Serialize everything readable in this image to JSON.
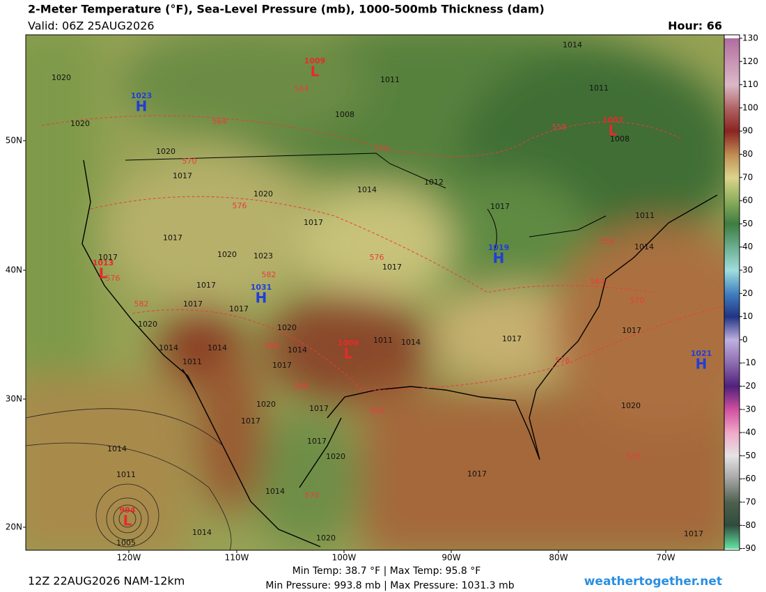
{
  "header": {
    "title": "2-Meter Temperature (°F), Sea-Level Pressure (mb), 1000-500mb Thickness (dam)",
    "valid": "Valid: 06Z 25AUG2026",
    "hour": "Hour: 66"
  },
  "colorbar": {
    "ticks": [
      130,
      120,
      110,
      100,
      90,
      80,
      70,
      60,
      50,
      40,
      30,
      20,
      10,
      0,
      -10,
      -20,
      -30,
      -40,
      -50,
      -60,
      -70,
      -80,
      -90
    ]
  },
  "latitudes": [
    "50N",
    "40N",
    "30N",
    "20N"
  ],
  "longitudes": [
    "120W",
    "110W",
    "100W",
    "90W",
    "80W",
    "70W"
  ],
  "centers": [
    {
      "letter": "H",
      "value": 1023
    },
    {
      "letter": "L",
      "value": 1009
    },
    {
      "letter": "L",
      "value": 1007
    },
    {
      "letter": "H",
      "value": 1019
    },
    {
      "letter": "H",
      "value": 1031
    },
    {
      "letter": "L",
      "value": 1013
    },
    {
      "letter": "L",
      "value": 1009
    },
    {
      "letter": "H",
      "value": 1021
    },
    {
      "letter": "L",
      "value": 994
    }
  ],
  "pressure_labels": [
    1014,
    1011,
    1011,
    1020,
    1020,
    1008,
    1008,
    1020,
    1017,
    1014,
    1012,
    1020,
    1017,
    1017,
    1017,
    1011,
    1014,
    1020,
    1023,
    1017,
    1017,
    1017,
    1017,
    1017,
    1020,
    1020,
    1014,
    1014,
    1011,
    1014,
    1017,
    1011,
    1014,
    1017,
    1017,
    1020,
    1017,
    1017,
    1017,
    1020,
    1014,
    1011,
    1005,
    1014,
    1014,
    1020,
    1017,
    1020,
    1017
  ],
  "thickness_labels": [
    564,
    564,
    558,
    570,
    570,
    576,
    558,
    576,
    576,
    582,
    564,
    570,
    582,
    588,
    576,
    588,
    582,
    576,
    570
  ],
  "footer": {
    "run": "12Z 22AUG2026 NAM-12km",
    "temps": "Min Temp:  38.7 °F | Max Temp:  95.8 °F",
    "pressures": "Min Pressure: 993.8 mb | Max Pressure: 1031.3 mb",
    "site": "weathertogether.net"
  }
}
